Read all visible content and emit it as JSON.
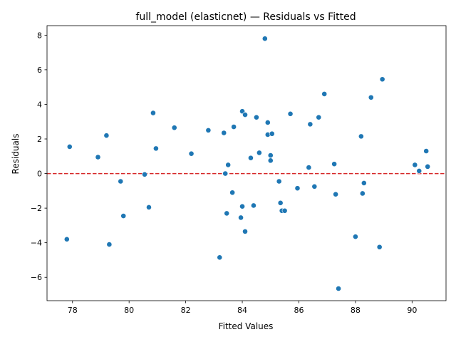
{
  "chart_data": {
    "type": "scatter",
    "title": "full_model (elasticnet) — Residuals vs Fitted",
    "xlabel": "Fitted Values",
    "ylabel": "Residuals",
    "xlim": [
      77.1,
      91.2
    ],
    "ylim": [
      -7.35,
      8.55
    ],
    "xticks": [
      78,
      80,
      82,
      84,
      86,
      88,
      90
    ],
    "yticks": [
      -6,
      -4,
      -2,
      0,
      2,
      4,
      6,
      8
    ],
    "reference_line": {
      "y": 0,
      "style": "dashed",
      "color": "#d62728"
    },
    "marker_color": "#1f77b4",
    "grid": false,
    "points": [
      {
        "x": 77.8,
        "y": -3.8
      },
      {
        "x": 77.9,
        "y": 1.55
      },
      {
        "x": 78.9,
        "y": 0.95
      },
      {
        "x": 79.2,
        "y": 2.2
      },
      {
        "x": 79.3,
        "y": -4.1
      },
      {
        "x": 79.7,
        "y": -0.45
      },
      {
        "x": 79.8,
        "y": -2.45
      },
      {
        "x": 80.55,
        "y": -0.05
      },
      {
        "x": 80.7,
        "y": -1.95
      },
      {
        "x": 80.85,
        "y": 3.5
      },
      {
        "x": 80.95,
        "y": 1.45
      },
      {
        "x": 81.6,
        "y": 2.65
      },
      {
        "x": 82.2,
        "y": 1.15
      },
      {
        "x": 82.8,
        "y": 2.5
      },
      {
        "x": 83.2,
        "y": -4.85
      },
      {
        "x": 83.35,
        "y": 2.35
      },
      {
        "x": 83.4,
        "y": 0.0
      },
      {
        "x": 83.45,
        "y": -2.3
      },
      {
        "x": 83.5,
        "y": 0.5
      },
      {
        "x": 83.65,
        "y": -1.1
      },
      {
        "x": 83.7,
        "y": 2.7
      },
      {
        "x": 83.95,
        "y": -2.55
      },
      {
        "x": 84.0,
        "y": -1.9
      },
      {
        "x": 84.0,
        "y": 3.6
      },
      {
        "x": 84.1,
        "y": 3.4
      },
      {
        "x": 84.1,
        "y": -3.35
      },
      {
        "x": 84.3,
        "y": 0.9
      },
      {
        "x": 84.4,
        "y": -1.85
      },
      {
        "x": 84.5,
        "y": 3.25
      },
      {
        "x": 84.6,
        "y": 1.2
      },
      {
        "x": 84.8,
        "y": 7.8
      },
      {
        "x": 84.9,
        "y": 2.25
      },
      {
        "x": 84.9,
        "y": 2.95
      },
      {
        "x": 85.0,
        "y": 1.05
      },
      {
        "x": 85.0,
        "y": 0.75
      },
      {
        "x": 85.05,
        "y": 2.3
      },
      {
        "x": 85.3,
        "y": -0.45
      },
      {
        "x": 85.35,
        "y": -1.7
      },
      {
        "x": 85.4,
        "y": -2.15
      },
      {
        "x": 85.5,
        "y": -2.15
      },
      {
        "x": 85.7,
        "y": 3.45
      },
      {
        "x": 85.95,
        "y": -0.85
      },
      {
        "x": 86.35,
        "y": 0.35
      },
      {
        "x": 86.4,
        "y": 2.85
      },
      {
        "x": 86.55,
        "y": -0.75
      },
      {
        "x": 86.7,
        "y": 3.25
      },
      {
        "x": 86.9,
        "y": 4.6
      },
      {
        "x": 87.25,
        "y": 0.55
      },
      {
        "x": 87.3,
        "y": -1.2
      },
      {
        "x": 87.4,
        "y": -6.65
      },
      {
        "x": 88.0,
        "y": -3.65
      },
      {
        "x": 88.2,
        "y": 2.15
      },
      {
        "x": 88.25,
        "y": -1.15
      },
      {
        "x": 88.3,
        "y": -0.55
      },
      {
        "x": 88.55,
        "y": 4.4
      },
      {
        "x": 88.85,
        "y": -4.25
      },
      {
        "x": 88.95,
        "y": 5.45
      },
      {
        "x": 90.1,
        "y": 0.5
      },
      {
        "x": 90.25,
        "y": 0.15
      },
      {
        "x": 90.5,
        "y": 1.3
      },
      {
        "x": 90.55,
        "y": 0.4
      }
    ]
  }
}
